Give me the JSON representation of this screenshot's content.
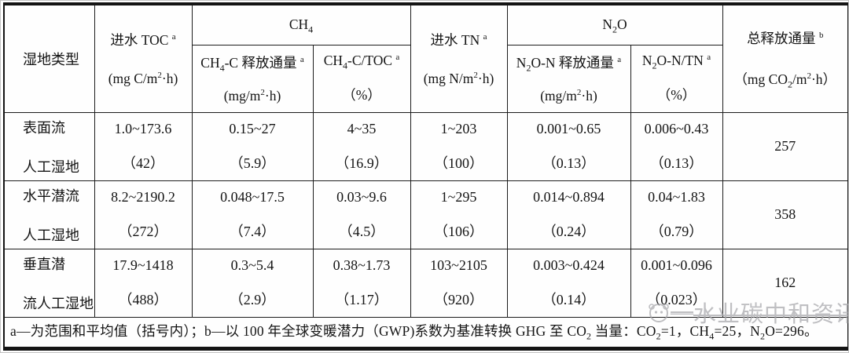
{
  "table": {
    "header": {
      "wetland_type": "湿地类型",
      "toc_title": "进水 TOC <sup>a</sup>",
      "toc_unit": "(mg C/m<sup>2</sup>·h)",
      "ch4_group": "CH<sub>4</sub>",
      "ch4_flux_title": "CH<sub>4</sub>-C 释放通量 <sup>a</sup>",
      "ch4_flux_unit": "(mg/m<sup>2</sup>·h)",
      "ch4_ratio_title": "CH<sub>4</sub>-C/TOC <sup>a</sup>",
      "ch4_ratio_unit": "（%）",
      "tn_title": "进水 TN <sup>a</sup>",
      "tn_unit": "(mg N/m<sup>2</sup>·h)",
      "n2o_group": "N<sub>2</sub>O",
      "n2o_flux_title": "N<sub>2</sub>O-N 释放通量 <sup>a</sup>",
      "n2o_flux_unit": "(mg/m<sup>2</sup>·h)",
      "n2o_ratio_title": "N<sub>2</sub>O-N/TN <sup>a</sup>",
      "n2o_ratio_unit": "（%）",
      "total_title": "总释放通量 <sup>b</sup>",
      "total_unit": "（mg CO<sub>2</sub>/m<sup>2</sup>·h）"
    },
    "rows": [
      {
        "type": [
          "表面流",
          "人工湿地"
        ],
        "toc": [
          "1.0~173.6",
          "（42）"
        ],
        "ch4_flux": [
          "0.15~27",
          "（5.9）"
        ],
        "ch4_ratio": [
          "4~35",
          "（16.9）"
        ],
        "tn": [
          "1~203",
          "（100）"
        ],
        "n2o_flux": [
          "0.001~0.65",
          "（0.13）"
        ],
        "n2o_ratio": [
          "0.006~0.43",
          "（0.13）"
        ],
        "total": "257"
      },
      {
        "type": [
          "水平潜流",
          "人工湿地"
        ],
        "toc": [
          "8.2~2190.2",
          "（272）"
        ],
        "ch4_flux": [
          "0.048~17.5",
          "（7.4）"
        ],
        "ch4_ratio": [
          "0.03~9.6",
          "（4.5）"
        ],
        "tn": [
          "1~295",
          "（106）"
        ],
        "n2o_flux": [
          "0.014~0.894",
          "（0.24）"
        ],
        "n2o_ratio": [
          "0.04~1.83",
          "（0.79）"
        ],
        "total": "358"
      },
      {
        "type": [
          "垂直潜",
          "流人工湿地"
        ],
        "toc": [
          "17.9~1418",
          "（488）"
        ],
        "ch4_flux": [
          "0.3~5.4",
          "（2.9）"
        ],
        "ch4_ratio": [
          "0.38~1.73",
          "（1.17）"
        ],
        "tn": [
          "103~2105",
          "（920）"
        ],
        "n2o_flux": [
          "0.003~0.424",
          "（0.14）"
        ],
        "n2o_ratio": [
          "0.001~0.096",
          "（0.023）"
        ],
        "total": "162"
      }
    ],
    "footnote": "a—为范围和平均值（括号内）；b—以 100 年全球变暖潜力（GWP)系数为基准转换 GHG 至 CO<sub>2</sub> 当量：CO<sub>2</sub>=1，CH<sub>4</sub>=25，N<sub>2</sub>O=296。"
  },
  "watermark": {
    "dash": "—",
    "text": "水业碳中和资讯"
  }
}
